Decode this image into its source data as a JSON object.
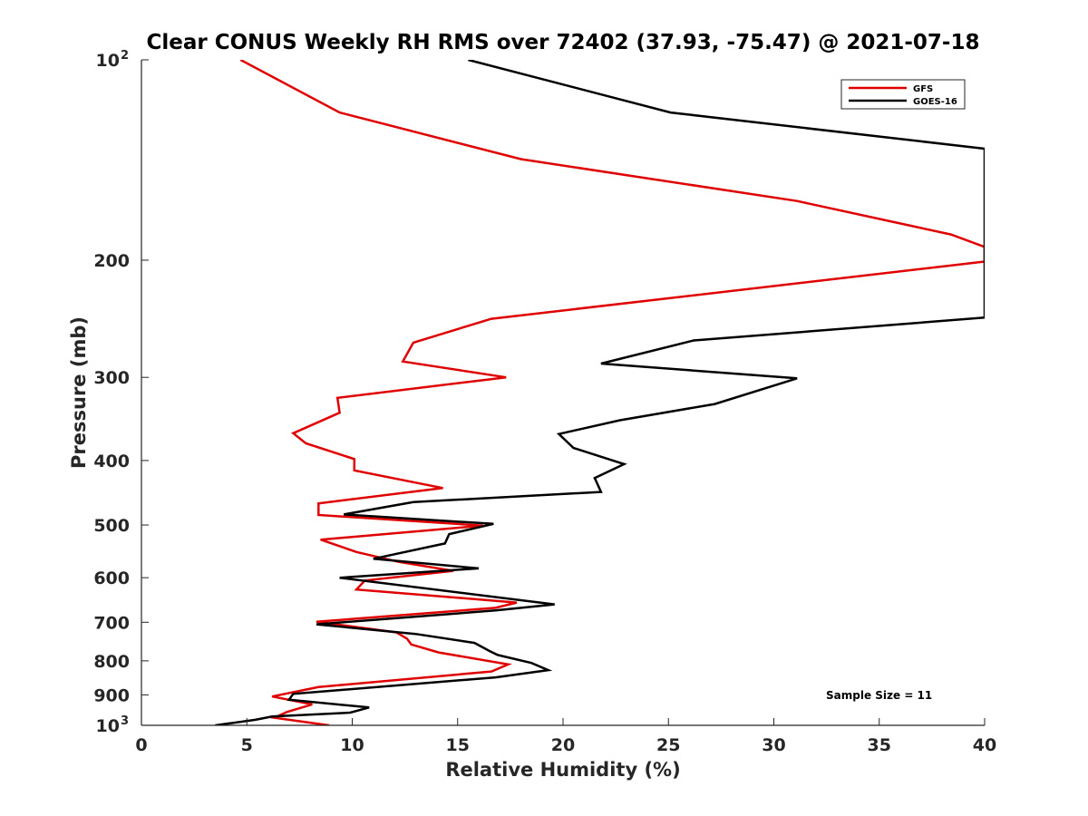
{
  "chart_data": {
    "type": "line",
    "title": "Clear CONUS Weekly RH RMS over 72402 (37.93, -75.47) @ 2021-07-18",
    "xlabel": "Relative Humidity (%)",
    "ylabel": "Pressure (mb)",
    "xlim": [
      0,
      40
    ],
    "ylim": [
      100,
      1000
    ],
    "yscale": "log",
    "y_reversed": true,
    "x_ticks": [
      0,
      5,
      10,
      15,
      20,
      25,
      30,
      35,
      40
    ],
    "y_ticks": [
      {
        "value": 100,
        "label": "10",
        "sup": "2"
      },
      {
        "value": 200,
        "label": "200",
        "sup": ""
      },
      {
        "value": 300,
        "label": "300",
        "sup": ""
      },
      {
        "value": 400,
        "label": "400",
        "sup": ""
      },
      {
        "value": 500,
        "label": "500",
        "sup": ""
      },
      {
        "value": 600,
        "label": "600",
        "sup": ""
      },
      {
        "value": 700,
        "label": "700",
        "sup": ""
      },
      {
        "value": 800,
        "label": "800",
        "sup": ""
      },
      {
        "value": 900,
        "label": "900",
        "sup": ""
      },
      {
        "value": 1000,
        "label": "10",
        "sup": "3"
      }
    ],
    "legend_position": "top-right",
    "annotation": "Sample Size = 11",
    "series": [
      {
        "name": "GFS",
        "color": "#e00000",
        "points": [
          [
            4.7,
            100
          ],
          [
            9.4,
            120
          ],
          [
            18,
            141
          ],
          [
            31.1,
            163
          ],
          [
            38.4,
            183
          ],
          [
            40,
            191
          ],
          [
            40,
            201
          ],
          [
            16.6,
            245
          ],
          [
            12.9,
            266
          ],
          [
            12.4,
            284
          ],
          [
            17.3,
            300
          ],
          [
            9.3,
            322
          ],
          [
            9.4,
            339
          ],
          [
            7.2,
            364
          ],
          [
            7.8,
            377
          ],
          [
            10.1,
            398
          ],
          [
            10.1,
            414
          ],
          [
            14.3,
            440
          ],
          [
            8.4,
            464
          ],
          [
            8.4,
            483
          ],
          [
            16.2,
            501
          ],
          [
            8.5,
            526
          ],
          [
            10.2,
            549
          ],
          [
            12.2,
            568
          ],
          [
            14.8,
            586
          ],
          [
            10.6,
            606
          ],
          [
            10.2,
            625
          ],
          [
            17.8,
            654
          ],
          [
            16.8,
            666
          ],
          [
            8.3,
            699
          ],
          [
            12.1,
            725
          ],
          [
            12.6,
            741
          ],
          [
            12.8,
            756
          ],
          [
            14.1,
            777
          ],
          [
            17.4,
            810
          ],
          [
            16.6,
            830
          ],
          [
            8.4,
            876
          ],
          [
            6.2,
            905
          ],
          [
            8.1,
            930
          ],
          [
            6.9,
            955
          ],
          [
            6.3,
            974
          ],
          [
            8.9,
            1000
          ]
        ]
      },
      {
        "name": "GOES-16",
        "color": "#000000",
        "points": [
          [
            15.5,
            100
          ],
          [
            25.1,
            120
          ],
          [
            40,
            136
          ],
          [
            40,
            244
          ],
          [
            26.2,
            264
          ],
          [
            21.8,
            286
          ],
          [
            31.1,
            301
          ],
          [
            27.2,
            329
          ],
          [
            22.7,
            348
          ],
          [
            19.8,
            365
          ],
          [
            20.5,
            383
          ],
          [
            22.9,
            405
          ],
          [
            21.5,
            425
          ],
          [
            21.8,
            446
          ],
          [
            12.9,
            462
          ],
          [
            9.6,
            482
          ],
          [
            16.7,
            498
          ],
          [
            14.6,
            516
          ],
          [
            14.4,
            533
          ],
          [
            11,
            562
          ],
          [
            16,
            581
          ],
          [
            9.4,
            600
          ],
          [
            19.6,
            658
          ],
          [
            16.8,
            672
          ],
          [
            8.3,
            705
          ],
          [
            13,
            729
          ],
          [
            15.8,
            752
          ],
          [
            16.5,
            773
          ],
          [
            16.9,
            784
          ],
          [
            18.5,
            806
          ],
          [
            19.3,
            826
          ],
          [
            16.8,
            847
          ],
          [
            7.2,
            897
          ],
          [
            7,
            915
          ],
          [
            10.8,
            940
          ],
          [
            9.9,
            957
          ],
          [
            6.2,
            970
          ],
          [
            5.4,
            981
          ],
          [
            3.5,
            1000
          ]
        ]
      }
    ]
  }
}
